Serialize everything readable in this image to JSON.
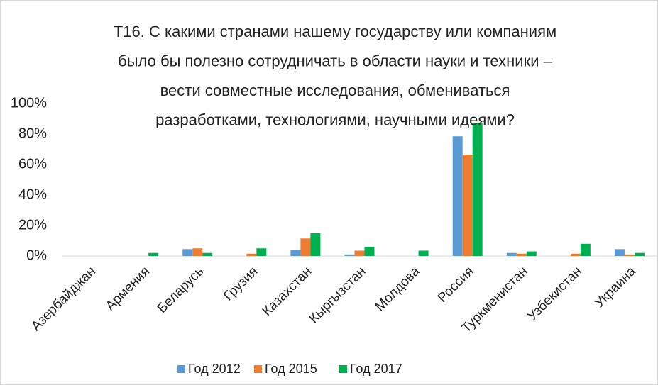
{
  "chart_data": {
    "type": "bar",
    "title": [
      "T16. С какими странами нашему государству или компаниям",
      "было бы полезно сотрудничать в области науки и техники –",
      "вести совместные исследования, обмениваться",
      "разработками, технологиями, научными идеями?"
    ],
    "categories": [
      "Азербайджан",
      "Армения",
      "Беларусь",
      "Грузия",
      "Казахстан",
      "Кыргызстан",
      "Молдова",
      "Россия",
      "Туркменистан",
      "Узбекистан",
      "Украина"
    ],
    "series": [
      {
        "name": "Год 2012",
        "color": "#5b9bd5",
        "values": [
          0,
          0,
          4.5,
          0,
          4,
          1,
          0,
          78.5,
          2,
          0,
          4.5
        ]
      },
      {
        "name": "Год 2015",
        "color": "#ed7d31",
        "values": [
          0,
          0,
          5,
          1.5,
          11.5,
          3.5,
          0,
          66.5,
          1.5,
          1.5,
          1
        ]
      },
      {
        "name": "Год 2017",
        "color": "#00b050",
        "values": [
          0,
          2,
          2,
          5,
          15,
          6,
          3.5,
          87,
          3,
          8,
          2
        ]
      }
    ],
    "ylim": [
      0,
      100
    ],
    "yticks": [
      {
        "value": 0,
        "label": "0%"
      },
      {
        "value": 20,
        "label": "20%"
      },
      {
        "value": 40,
        "label": "40%"
      },
      {
        "value": 60,
        "label": "60%"
      },
      {
        "value": 80,
        "label": "80%"
      },
      {
        "value": 100,
        "label": "100%"
      }
    ],
    "grid": false,
    "legend": "bottom"
  }
}
